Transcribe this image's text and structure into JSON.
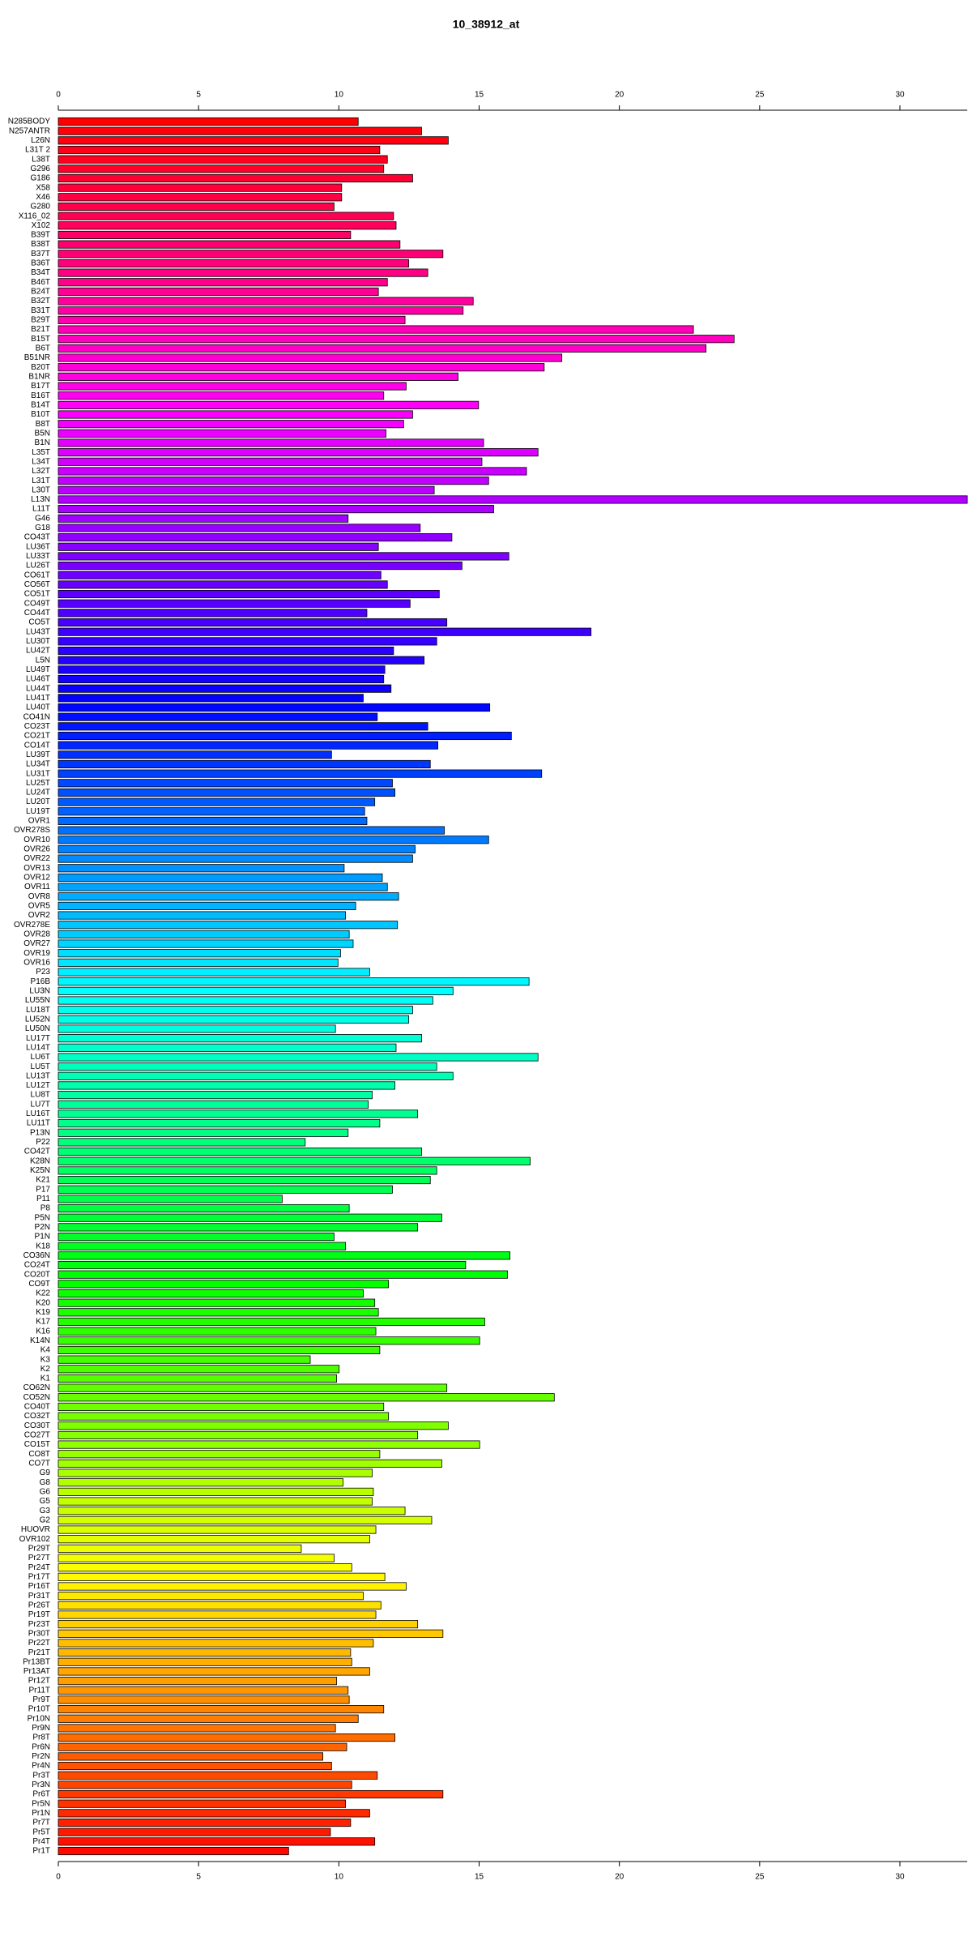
{
  "chart_data": {
    "type": "barh",
    "title": "10_38912_at",
    "palette": "rainbow",
    "categories": [
      "N285BODY",
      "N257ANTR",
      "L26N",
      "L31T 2",
      "L38T",
      "G296",
      "G186",
      "X58",
      "X46",
      "G280",
      "X116_02",
      "X102",
      "B39T",
      "B38T",
      "B37T",
      "B36T",
      "B34T",
      "B46T",
      "B24T",
      "B32T",
      "B31T",
      "B29T",
      "B21T",
      "B15T",
      "B6T",
      "B51NR",
      "B20T",
      "B1NR",
      "B17T",
      "B16T",
      "B14T",
      "B10T",
      "B8T",
      "B5N",
      "B1N",
      "L35T",
      "L34T",
      "L32T",
      "L31T",
      "L30T",
      "L13N",
      "L11T",
      "G46",
      "G18",
      "CO43T",
      "LU36T",
      "LU33T",
      "LU26T",
      "CO61T",
      "CO56T",
      "CO51T",
      "CO49T",
      "CO44T",
      "CO5T",
      "LU43T",
      "LU30T",
      "LU42T",
      "L5N",
      "LU49T",
      "LU46T",
      "LU44T",
      "LU41T",
      "LU40T",
      "CO41N",
      "CO23T",
      "CO21T",
      "CO14T",
      "LU39T",
      "LU34T",
      "LU31T",
      "LU25T",
      "LU24T",
      "LU20T",
      "LU19T",
      "OVR1",
      "OVR278S",
      "OVR10",
      "OVR26",
      "OVR22",
      "OVR13",
      "OVR12",
      "OVR11",
      "OVR8",
      "OVR5",
      "OVR2",
      "OVR278E",
      "OVR28",
      "OVR27",
      "OVR19",
      "OVR16",
      "P23",
      "P16B",
      "LU3N",
      "LU55N",
      "LU18T",
      "LU52N",
      "LU50N",
      "LU17T",
      "LU14T",
      "LU6T",
      "LU5T",
      "LU13T",
      "LU12T",
      "LU8T",
      "LU7T",
      "LU16T",
      "LU11T",
      "P13N",
      "P22",
      "CO42T",
      "K28N",
      "K25N",
      "K21",
      "P17",
      "P11",
      "P8",
      "P5N",
      "P2N",
      "P1N",
      "K18",
      "CO36N",
      "CO24T",
      "CO20T",
      "CO9T",
      "K22",
      "K20",
      "K19",
      "K17",
      "K16",
      "K14N",
      "K4",
      "K3",
      "K2",
      "K1",
      "CO62N",
      "CO52N",
      "CO40T",
      "CO32T",
      "CO30T",
      "CO27T",
      "CO15T",
      "CO8T",
      "CO7T",
      "G9",
      "G8",
      "G6",
      "G5",
      "G3",
      "G2",
      "HUOVR",
      "OVR102",
      "Pr29T",
      "Pr27T",
      "Pr24T",
      "Pr17T",
      "Pr16T",
      "Pr31T",
      "Pr26T",
      "Pr19T",
      "Pr23T",
      "Pr30T",
      "Pr22T",
      "Pr21T",
      "Pr13BT",
      "Pr13AT",
      "Pr12T",
      "Pr11T",
      "Pr9T",
      "Pr10T",
      "Pr10N",
      "Pr9N",
      "Pr8T",
      "Pr6N",
      "Pr2N",
      "Pr4N",
      "Pr3T",
      "Pr3N",
      "Pr6T",
      "Pr5N",
      "Pr1N",
      "Pr7T",
      "Pr5T",
      "Pr4T",
      "Pr1T"
    ],
    "values": [
      10.69,
      12.95,
      13.9,
      11.46,
      11.73,
      11.6,
      12.63,
      10.1,
      10.1,
      9.83,
      11.95,
      12.04,
      10.42,
      12.18,
      13.71,
      12.49,
      13.17,
      11.73,
      11.41,
      14.79,
      14.43,
      12.36,
      22.64,
      24.09,
      23.09,
      17.95,
      17.32,
      14.25,
      12.4,
      11.6,
      14.98,
      12.63,
      12.31,
      11.68,
      15.16,
      17.1,
      15.1,
      16.69,
      15.34,
      13.4,
      32.4,
      15.52,
      10.33,
      12.9,
      14.03,
      11.41,
      16.06,
      14.39,
      11.5,
      11.73,
      13.58,
      12.54,
      11.0,
      13.85,
      18.99,
      13.49,
      11.95,
      13.04,
      11.64,
      11.6,
      11.86,
      10.87,
      15.38,
      11.37,
      13.17,
      16.15,
      13.53,
      9.74,
      13.26,
      17.23,
      11.91,
      12.0,
      11.28,
      10.92,
      11.0,
      13.76,
      15.34,
      12.72,
      12.63,
      10.19,
      11.55,
      11.73,
      12.13,
      10.6,
      10.24,
      12.09,
      10.37,
      10.51,
      10.06,
      9.97,
      11.1,
      16.78,
      14.07,
      13.35,
      12.63,
      12.49,
      9.88,
      12.95,
      12.04,
      17.1,
      13.49,
      14.07,
      12.0,
      11.19,
      11.05,
      12.81,
      11.46,
      10.33,
      8.8,
      12.95,
      16.82,
      13.49,
      13.26,
      11.91,
      7.98,
      10.37,
      13.67,
      12.81,
      9.83,
      10.24,
      16.1,
      14.52,
      16.01,
      11.77,
      10.87,
      11.28,
      11.41,
      15.2,
      11.32,
      15.02,
      11.46,
      8.98,
      10.01,
      9.92,
      13.85,
      17.68,
      11.6,
      11.77,
      13.9,
      12.81,
      15.02,
      11.46,
      13.67,
      11.19,
      10.15,
      11.23,
      11.19,
      12.36,
      13.31,
      11.32,
      11.1,
      8.66,
      9.83,
      10.46,
      11.64,
      12.4,
      10.87,
      11.5,
      11.32,
      12.81,
      13.71,
      11.23,
      10.42,
      10.46,
      11.1,
      9.92,
      10.33,
      10.37,
      11.6,
      10.69,
      9.88,
      12.0,
      10.28,
      9.43,
      9.74,
      11.37,
      10.46,
      13.71,
      10.24,
      11.1,
      10.42,
      9.7,
      11.28,
      8.21
    ],
    "xlim": [
      0,
      32.4
    ],
    "xticks": [
      0,
      5,
      10,
      15,
      20,
      25,
      30
    ]
  }
}
